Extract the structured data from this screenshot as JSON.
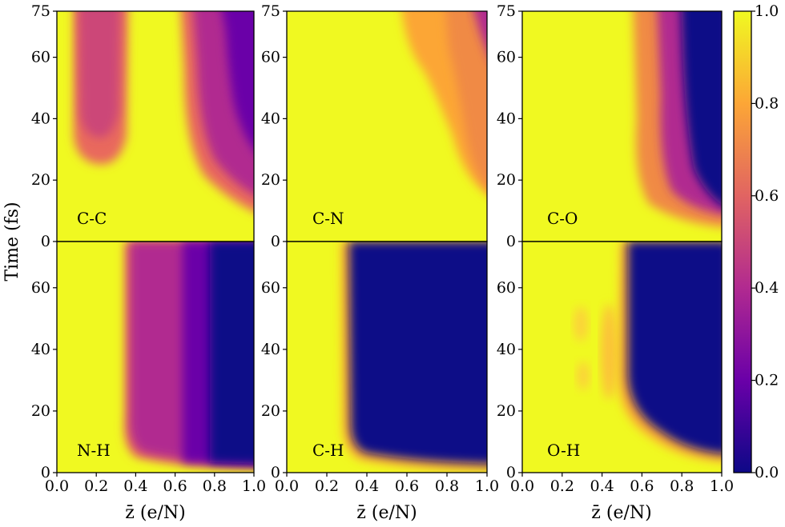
{
  "chart_data": {
    "type": "heatmap",
    "layout": "2x3 grid of panels with shared colorbar",
    "ylabel": "Time (fs)",
    "xlabel": "z̄ (e/N)",
    "x_ticks": [
      "0.0",
      "0.2",
      "0.4",
      "0.6",
      "0.8",
      "1.0"
    ],
    "y_ticks_top": [
      "0",
      "20",
      "40",
      "60",
      "75"
    ],
    "y_ticks_bottom": [
      "0",
      "20",
      "40",
      "60"
    ],
    "xlim": [
      0,
      1
    ],
    "ylim": [
      0,
      75
    ],
    "colorbar": {
      "colormap": "plasma",
      "range": [
        0,
        1
      ],
      "ticks": [
        "0.0",
        "0.2",
        "0.4",
        "0.6",
        "0.8",
        "1.0"
      ],
      "stops": [
        "#0d0887",
        "#6a00a8",
        "#b12a90",
        "#e16462",
        "#fca636",
        "#f0f921"
      ]
    },
    "panels": [
      {
        "label": "C-C",
        "row": 0,
        "col": 0,
        "description_regions": [
          {
            "x_start": 0.08,
            "x_end": 0.36,
            "t_start": 25,
            "value": 0.55
          },
          {
            "x_start": 0.62,
            "x_end": 1.0,
            "t_start": 10,
            "value": 0.35
          }
        ]
      },
      {
        "label": "C-N",
        "row": 0,
        "col": 1,
        "description_regions": [
          {
            "x_start": 0.55,
            "x_end": 1.0,
            "t_start": 14,
            "value": 0.75
          }
        ]
      },
      {
        "label": "C-O",
        "row": 0,
        "col": 2,
        "description_regions": [
          {
            "x_start": 0.48,
            "x_end": 0.72,
            "t_start": 6,
            "value": 0.7
          },
          {
            "x_start": 0.72,
            "x_end": 1.0,
            "t_start": 8,
            "value": 0.05
          }
        ]
      },
      {
        "label": "N-H",
        "row": 1,
        "col": 0,
        "description_regions": [
          {
            "x_start": 0.35,
            "x_end": 0.62,
            "t_start": 4,
            "value": 0.45
          },
          {
            "x_start": 0.62,
            "x_end": 0.78,
            "t_start": 3,
            "value": 0.2
          },
          {
            "x_start": 0.78,
            "x_end": 1.0,
            "t_start": 3,
            "value": 0.02
          }
        ]
      },
      {
        "label": "C-H",
        "row": 1,
        "col": 1,
        "description_regions": [
          {
            "x_start": 0.27,
            "x_end": 1.0,
            "t_start": 4,
            "value": 0.02
          }
        ]
      },
      {
        "label": "O-H",
        "row": 1,
        "col": 2,
        "description_regions": [
          {
            "x_start": 0.5,
            "x_end": 1.0,
            "t_start": 10,
            "value": 0.02
          }
        ]
      }
    ]
  }
}
